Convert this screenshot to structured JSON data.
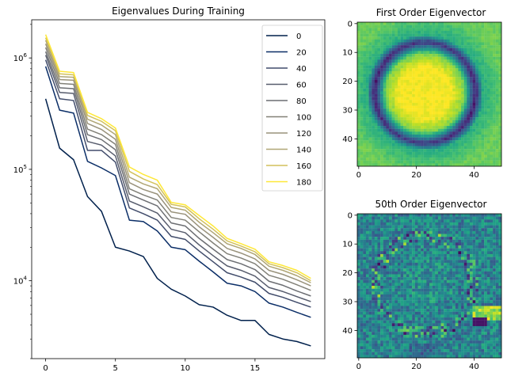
{
  "chart_data": [
    {
      "type": "line",
      "title": "Eigenvalues During Training",
      "xlabel": "",
      "ylabel": "",
      "yscale": "log",
      "xlim": [
        -1,
        20
      ],
      "ylim": [
        2000,
        2200000
      ],
      "xticks": [
        0,
        5,
        10,
        15
      ],
      "yticks": [
        {
          "value": 10000,
          "label": "10^4"
        },
        {
          "value": 100000,
          "label": "10^5"
        },
        {
          "value": 1000000,
          "label": "10^6"
        }
      ],
      "grid": false,
      "legend_position": "top-right",
      "x": [
        0,
        1,
        2,
        3,
        4,
        5,
        6,
        7,
        8,
        9,
        10,
        11,
        12,
        13,
        14,
        15,
        16,
        17,
        18,
        19
      ],
      "series": [
        {
          "name": "0",
          "color": "#00204c",
          "values": [
            430000,
            155000,
            122000,
            57000,
            42000,
            20000,
            18500,
            16500,
            10500,
            8400,
            7300,
            6100,
            5800,
            4900,
            4400,
            4400,
            3300,
            3000,
            2850,
            2600
          ]
        },
        {
          "name": "20",
          "color": "#0b2e67",
          "values": [
            840000,
            340000,
            320000,
            118000,
            103000,
            88000,
            35000,
            34000,
            28000,
            20000,
            19000,
            15000,
            12000,
            9500,
            9000,
            8000,
            6300,
            5800,
            5200,
            4700
          ]
        },
        {
          "name": "40",
          "color": "#414c6b",
          "values": [
            960000,
            430000,
            415000,
            148000,
            148000,
            116000,
            45000,
            40000,
            35000,
            25000,
            23500,
            18500,
            14800,
            11800,
            10800,
            9700,
            7700,
            7100,
            6400,
            5800
          ]
        },
        {
          "name": "60",
          "color": "#575c6d",
          "values": [
            1060000,
            490000,
            480000,
            178000,
            165000,
            132000,
            52000,
            46000,
            40500,
            29000,
            27000,
            21000,
            16800,
            13600,
            12400,
            11000,
            8700,
            8000,
            7200,
            6500
          ]
        },
        {
          "name": "80",
          "color": "#6c6e72",
          "values": [
            1140000,
            540000,
            530000,
            205000,
            185000,
            150000,
            60000,
            53000,
            47000,
            33000,
            31000,
            24000,
            19200,
            15500,
            14200,
            12600,
            9900,
            9100,
            8100,
            7300
          ]
        },
        {
          "name": "100",
          "color": "#818077",
          "values": [
            1240000,
            590000,
            580000,
            230000,
            205000,
            168000,
            67000,
            59000,
            53000,
            37000,
            35000,
            27500,
            21800,
            17500,
            16000,
            14200,
            11200,
            10300,
            9200,
            8200
          ]
        },
        {
          "name": "120",
          "color": "#99927b",
          "values": [
            1340000,
            640000,
            630000,
            258000,
            228000,
            186000,
            76000,
            66000,
            60000,
            41500,
            39500,
            30500,
            24500,
            19500,
            17700,
            15700,
            12400,
            11400,
            10200,
            9000
          ]
        },
        {
          "name": "140",
          "color": "#b0a676",
          "values": [
            1440000,
            680000,
            670000,
            282000,
            250000,
            205000,
            85000,
            74000,
            67000,
            45500,
            43000,
            33500,
            27000,
            21500,
            19500,
            17200,
            13500,
            12400,
            11100,
            9600
          ]
        },
        {
          "name": "160",
          "color": "#d2c15c",
          "values": [
            1520000,
            720000,
            705000,
            305000,
            270000,
            222000,
            96000,
            82000,
            73000,
            48500,
            46000,
            36000,
            29000,
            22800,
            20500,
            18200,
            14200,
            13100,
            11800,
            10000
          ]
        },
        {
          "name": "180",
          "color": "#fee838",
          "values": [
            1620000,
            760000,
            740000,
            325000,
            285000,
            235000,
            105000,
            90000,
            80000,
            50500,
            48000,
            38500,
            31000,
            24000,
            21500,
            19200,
            14800,
            13700,
            12400,
            10500
          ]
        }
      ]
    },
    {
      "type": "heatmap",
      "title": "First Order Eigenvector",
      "xticks": [
        0,
        20,
        40
      ],
      "yticks": [
        0,
        10,
        20,
        30,
        40
      ],
      "xlim": [
        -0.5,
        49.5
      ],
      "ylim": [
        49.5,
        -0.5
      ],
      "description": "ring pattern centered near (23,24): bright yellow center, dark purple ring at radius ~17, green corners",
      "colormap": "viridis"
    },
    {
      "type": "heatmap",
      "title": "50th Order Eigenvector",
      "xticks": [
        0,
        20,
        40
      ],
      "yticks": [
        0,
        10,
        20,
        30,
        40
      ],
      "xlim": [
        -0.5,
        49.5
      ],
      "ylim": [
        49.5,
        -0.5
      ],
      "colormap": "viridis"
    }
  ]
}
